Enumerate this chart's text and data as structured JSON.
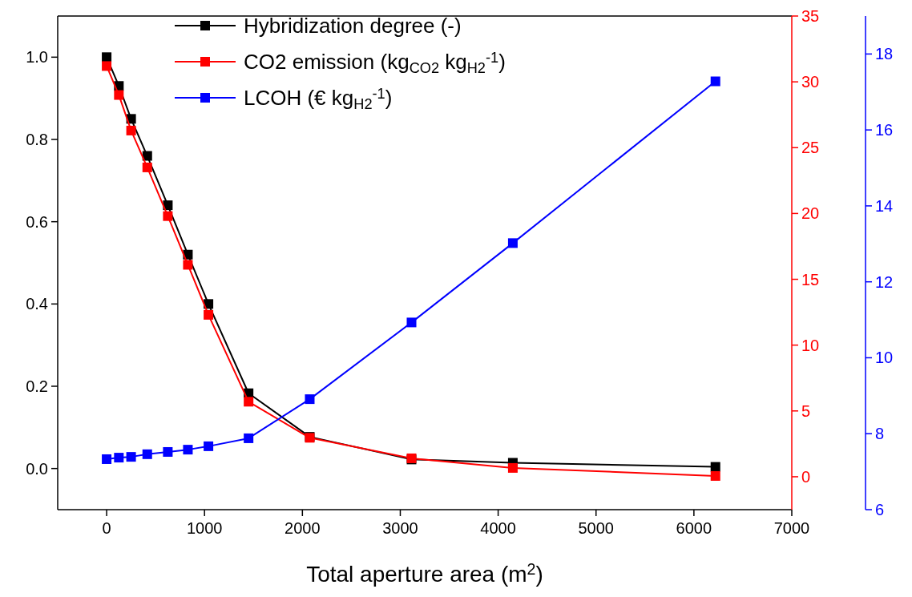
{
  "chart_data": {
    "type": "line",
    "xlabel": "Total aperture area (m$^{2}$)",
    "x": [
      0,
      125,
      250,
      415,
      625,
      830,
      1040,
      1450,
      2075,
      3115,
      4150,
      6220
    ],
    "xlim": [
      -500,
      7000
    ],
    "xticks": [
      0,
      1000,
      2000,
      3000,
      4000,
      5000,
      6000,
      7000
    ],
    "ylim": [
      -0.1,
      1.1
    ],
    "yticks": [
      {
        "value": 0,
        "label": "0.0"
      },
      {
        "value": 0.2,
        "label": "0.2"
      },
      {
        "value": 0.4,
        "label": "0.4"
      },
      {
        "value": 0.6,
        "label": "0.6"
      },
      {
        "value": 0.8,
        "label": "0.8"
      },
      {
        "value": 1,
        "label": "1.0"
      }
    ],
    "y2lim": [
      -2.5,
      35
    ],
    "y2ticks": [
      0,
      5,
      10,
      15,
      20,
      25,
      30,
      35
    ],
    "y3lim": [
      6,
      19
    ],
    "y3ticks": [
      6,
      8,
      10,
      12,
      14,
      16,
      18
    ],
    "marker": "square",
    "line_style": "solid",
    "legend": "top",
    "grid": false,
    "series": [
      {
        "name": "Hybridization degree (-)",
        "color": "#000000",
        "values": [
          1.0,
          0.93,
          0.85,
          0.76,
          0.64,
          0.52,
          0.4,
          0.183,
          0.077,
          0.022,
          0.014,
          0.004
        ]
      },
      {
        "name": "CO2 emission (kg$_{CO2}$ kg$_{H2}$$^{-1}$)",
        "color": "#ff0000",
        "axis": "y2",
        "values": [
          31.2,
          29.0,
          26.3,
          23.5,
          19.8,
          16.1,
          12.3,
          5.7,
          2.96,
          1.4,
          0.67,
          0.06
        ]
      },
      {
        "name": "LCOH (€ kg$_{H2}$$^{-1}$)",
        "color": "#0000ff",
        "axis": "y3",
        "values": [
          7.33,
          7.37,
          7.39,
          7.46,
          7.52,
          7.58,
          7.67,
          7.88,
          8.91,
          10.93,
          13.02,
          17.28
        ]
      }
    ]
  }
}
